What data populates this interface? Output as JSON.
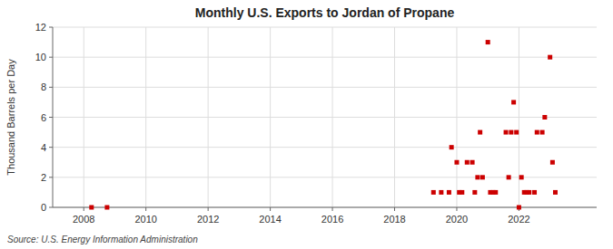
{
  "chart_data": {
    "type": "scatter",
    "title": "Monthly U.S. Exports to Jordan of Propane",
    "y_label": "Thousand Barrels per Day",
    "annotation": "Source: U.S. Energy Information Administration",
    "color": "#cc0000",
    "marker": "square",
    "grid": true,
    "xlim": [
      2007.0,
      2024.5
    ],
    "ylim": [
      0,
      12
    ],
    "xticks": [
      2008,
      2010,
      2012,
      2014,
      2016,
      2018,
      2020,
      2022
    ],
    "yticks": [
      0,
      2,
      4,
      6,
      8,
      10,
      12
    ],
    "x": [
      2008.25,
      2008.75,
      2019.25,
      2019.5,
      2019.75,
      2019.83,
      2020.0,
      2020.08,
      2020.17,
      2020.33,
      2020.5,
      2020.58,
      2020.67,
      2020.75,
      2020.83,
      2021.0,
      2021.08,
      2021.17,
      2021.25,
      2021.58,
      2021.67,
      2021.75,
      2021.83,
      2021.92,
      2022.0,
      2022.08,
      2022.17,
      2022.25,
      2022.33,
      2022.5,
      2022.58,
      2022.75,
      2022.83,
      2023.0,
      2023.08,
      2023.17
    ],
    "values": [
      0.0,
      0.0,
      1.0,
      1.0,
      1.0,
      4.0,
      3.0,
      1.0,
      1.0,
      3.0,
      3.0,
      1.0,
      2.0,
      5.0,
      2.0,
      11.0,
      1.0,
      1.0,
      1.0,
      5.0,
      2.0,
      5.0,
      7.0,
      5.0,
      0.0,
      2.0,
      1.0,
      1.0,
      1.0,
      1.0,
      5.0,
      5.0,
      6.0,
      10.0,
      3.0,
      1.0
    ]
  }
}
